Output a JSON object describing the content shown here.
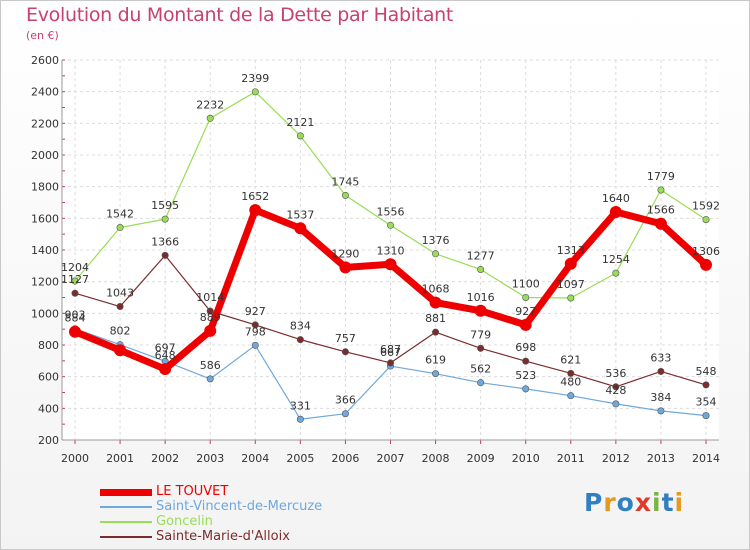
{
  "title": "Evolution du Montant de la Dette par Habitant",
  "subtitle": "(en €)",
  "logo": {
    "text": "Proxiti",
    "letters": [
      "P",
      "r",
      "o",
      "x",
      "i",
      "t",
      "i"
    ],
    "colors": [
      "#2f7fc1",
      "#e39a1d",
      "#2f7fc1",
      "#e0392b",
      "#7cb342",
      "#2f7fc1",
      "#e39a1d"
    ]
  },
  "chart_data": {
    "type": "line",
    "title": "Evolution du Montant de la Dette par Habitant",
    "subtitle": "(en €)",
    "xlabel": "",
    "ylabel": "",
    "x": [
      "2000",
      "2001",
      "2002",
      "2003",
      "2004",
      "2005",
      "2006",
      "2007",
      "2008",
      "2009",
      "2010",
      "2011",
      "2012",
      "2013",
      "2014"
    ],
    "ylim": [
      200,
      2600
    ],
    "yticks": [
      200,
      400,
      600,
      800,
      1000,
      1200,
      1400,
      1600,
      1800,
      2000,
      2200,
      2400,
      2600
    ],
    "grid": true,
    "legend_position": "bottom-left",
    "series": [
      {
        "name": "LE TOUVET",
        "color": "#ee0000",
        "values": [
          884,
          767,
          648,
          889,
          1652,
          1537,
          1290,
          1310,
          1068,
          1016,
          927,
          1313,
          1640,
          1566,
          1306
        ],
        "labels": [
          "884",
          "",
          "648",
          "889",
          "1652",
          "1537",
          "1290",
          "1310",
          "1068",
          "1016",
          "927",
          "1313",
          "1640",
          "1566",
          "1306"
        ]
      },
      {
        "name": "Saint-Vincent-de-Mercuze",
        "color": "#6fa8dc",
        "values": [
          903,
          802,
          697,
          586,
          798,
          331,
          366,
          667,
          619,
          562,
          523,
          480,
          428,
          384,
          354
        ],
        "labels": [
          "903",
          "802",
          "697",
          "586",
          "798",
          "331",
          "366",
          "667",
          "619",
          "562",
          "523",
          "480",
          "428",
          "384",
          "354"
        ]
      },
      {
        "name": "Goncelin",
        "color": "#99dd55",
        "values": [
          1204,
          1542,
          1595,
          2232,
          2399,
          2121,
          1745,
          1556,
          1376,
          1277,
          1100,
          1097,
          1254,
          1779,
          1592
        ],
        "labels": [
          "1204",
          "1542",
          "1595",
          "2232",
          "2399",
          "2121",
          "1745",
          "1556",
          "1376",
          "1277",
          "1100",
          "1097",
          "1254",
          "1779",
          "1592"
        ]
      },
      {
        "name": "Sainte-Marie-d'Alloix",
        "color": "#7b2d2d",
        "values": [
          1127,
          1043,
          1366,
          1014,
          927,
          834,
          757,
          687,
          881,
          779,
          698,
          621,
          536,
          633,
          548
        ],
        "labels": [
          "1127",
          "1043",
          "1366",
          "1014",
          "927",
          "834",
          "757",
          "687",
          "881",
          "779",
          "698",
          "621",
          "536",
          "633",
          "548"
        ]
      }
    ]
  }
}
